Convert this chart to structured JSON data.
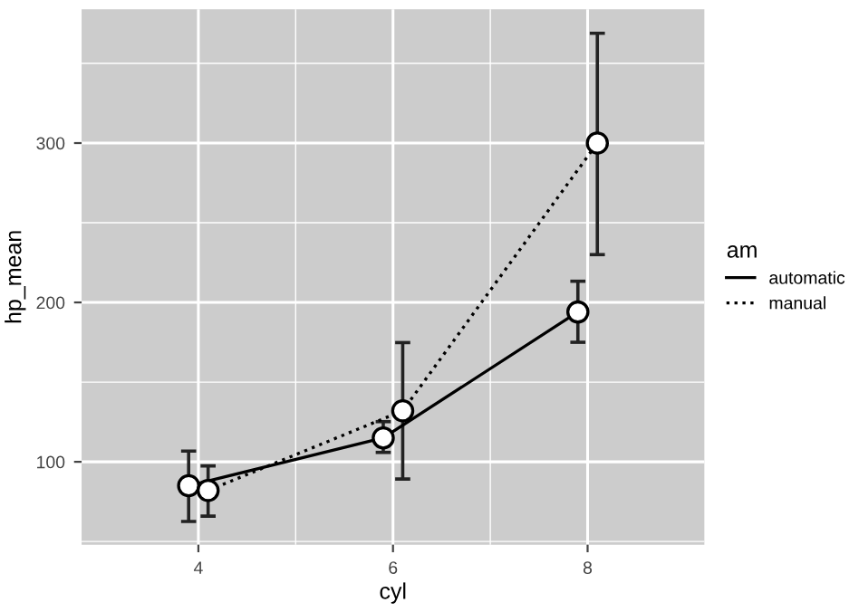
{
  "chart_data": {
    "type": "line",
    "xlabel": "cyl",
    "ylabel": "hp_mean",
    "legend_title": "am",
    "xlim": [
      2.8,
      9.2
    ],
    "xticks": [
      4,
      6,
      8
    ],
    "ylim": [
      48,
      384
    ],
    "yticks": [
      100,
      200,
      300
    ],
    "grid": true,
    "legend": "right",
    "marker": "circle",
    "series": [
      {
        "name": "automatic",
        "color": "#000000",
        "line_style": "solid",
        "x": [
          3.9,
          5.9,
          7.9
        ],
        "values": [
          85,
          115,
          194
        ],
        "errors": [
          [
            62.6,
            106.7
          ],
          [
            105.9,
            125.2
          ],
          [
            175,
            213.3
          ]
        ]
      },
      {
        "name": "manual",
        "color": "#000000",
        "line_style": "dotted",
        "x": [
          4.1,
          6.1,
          8.1
        ],
        "values": [
          82,
          132,
          300
        ],
        "errors": [
          [
            65.9,
            97.4
          ],
          [
            89.2,
            174.8
          ],
          [
            230,
            368.9
          ]
        ]
      }
    ]
  }
}
